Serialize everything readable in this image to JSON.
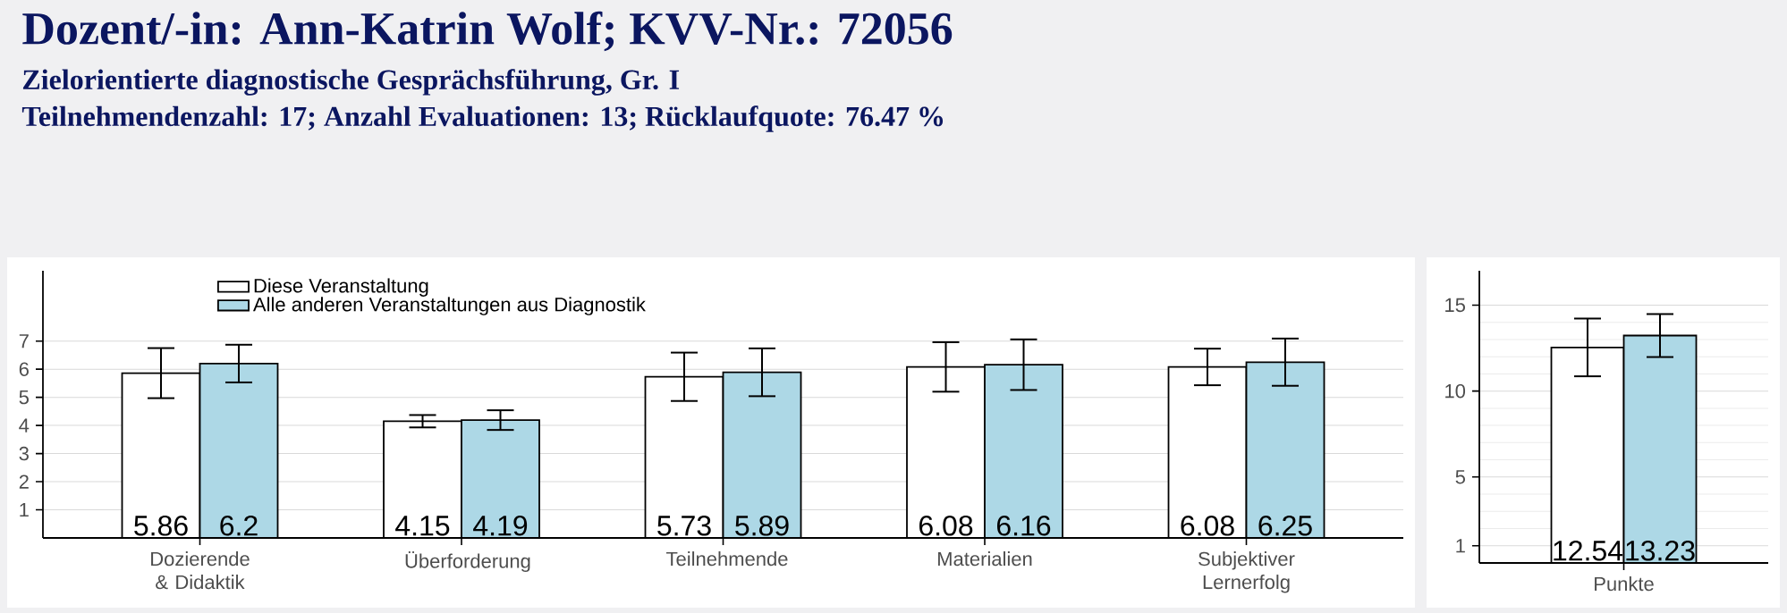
{
  "chart_data": [
    {
      "type": "bar",
      "title": "Dozent/-in: Ann-Katrin Wolf; KVV-Nr.: 72056",
      "subtitle": "Zielorientierte diagnostische Gesprächsführung, Gr. I",
      "annotations": [
        "Teilnehmendenzahl: 17; Anzahl Evaluationen: 13; Rücklaufquote: 76.47 %"
      ],
      "categories": [
        "Dozierende & Didaktik",
        "Überforderung",
        "Teilnehmende",
        "Materialien",
        "Subjektiver Lernerfolg"
      ],
      "series": [
        {
          "name": "Diese Veranstaltung",
          "color": "#ffffff",
          "values": [
            5.86,
            4.15,
            5.73,
            6.08,
            6.08
          ],
          "errors": [
            0.89,
            0.22,
            0.86,
            0.88,
            0.65
          ],
          "value_labels": [
            "5.86",
            "4.15",
            "5.73",
            "6.08",
            "6.08"
          ]
        },
        {
          "name": "Alle anderen Veranstaltungen aus Diagnostik",
          "color": "#add8e6",
          "values": [
            6.2,
            4.19,
            5.89,
            6.16,
            6.25
          ],
          "errors": [
            0.67,
            0.35,
            0.85,
            0.9,
            0.84
          ],
          "value_labels": [
            "6.2",
            "4.19",
            "5.89",
            "6.16",
            "6.25"
          ]
        }
      ],
      "ylim": [
        0,
        9.5
      ],
      "yticks": [
        1,
        2,
        3,
        4,
        5,
        6,
        7
      ],
      "grid": "y",
      "legend": "top left"
    },
    {
      "type": "bar",
      "categories": [
        "Punkte"
      ],
      "series": [
        {
          "color": "#ffffff",
          "values": [
            12.54
          ],
          "errors": [
            1.68
          ],
          "value_labels": [
            "12.54"
          ]
        },
        {
          "color": "#add8e6",
          "values": [
            13.23
          ],
          "errors": [
            1.25
          ],
          "value_labels": [
            "13.23"
          ]
        }
      ],
      "ylim": [
        0,
        17
      ],
      "yticks": [
        1,
        {
          "value": 2,
          "label": null
        },
        {
          "value": 3,
          "label": null
        },
        {
          "value": 4,
          "label": null
        },
        5,
        {
          "value": 6,
          "label": null
        },
        {
          "value": 7,
          "label": null
        },
        {
          "value": 8,
          "label": null
        },
        {
          "value": 9,
          "label": null
        },
        10,
        {
          "value": 11,
          "label": null
        },
        {
          "value": 12,
          "label": null
        },
        {
          "value": 13,
          "label": null
        },
        {
          "value": 14,
          "label": null
        },
        15
      ],
      "grid": "y",
      "legend": false
    }
  ]
}
